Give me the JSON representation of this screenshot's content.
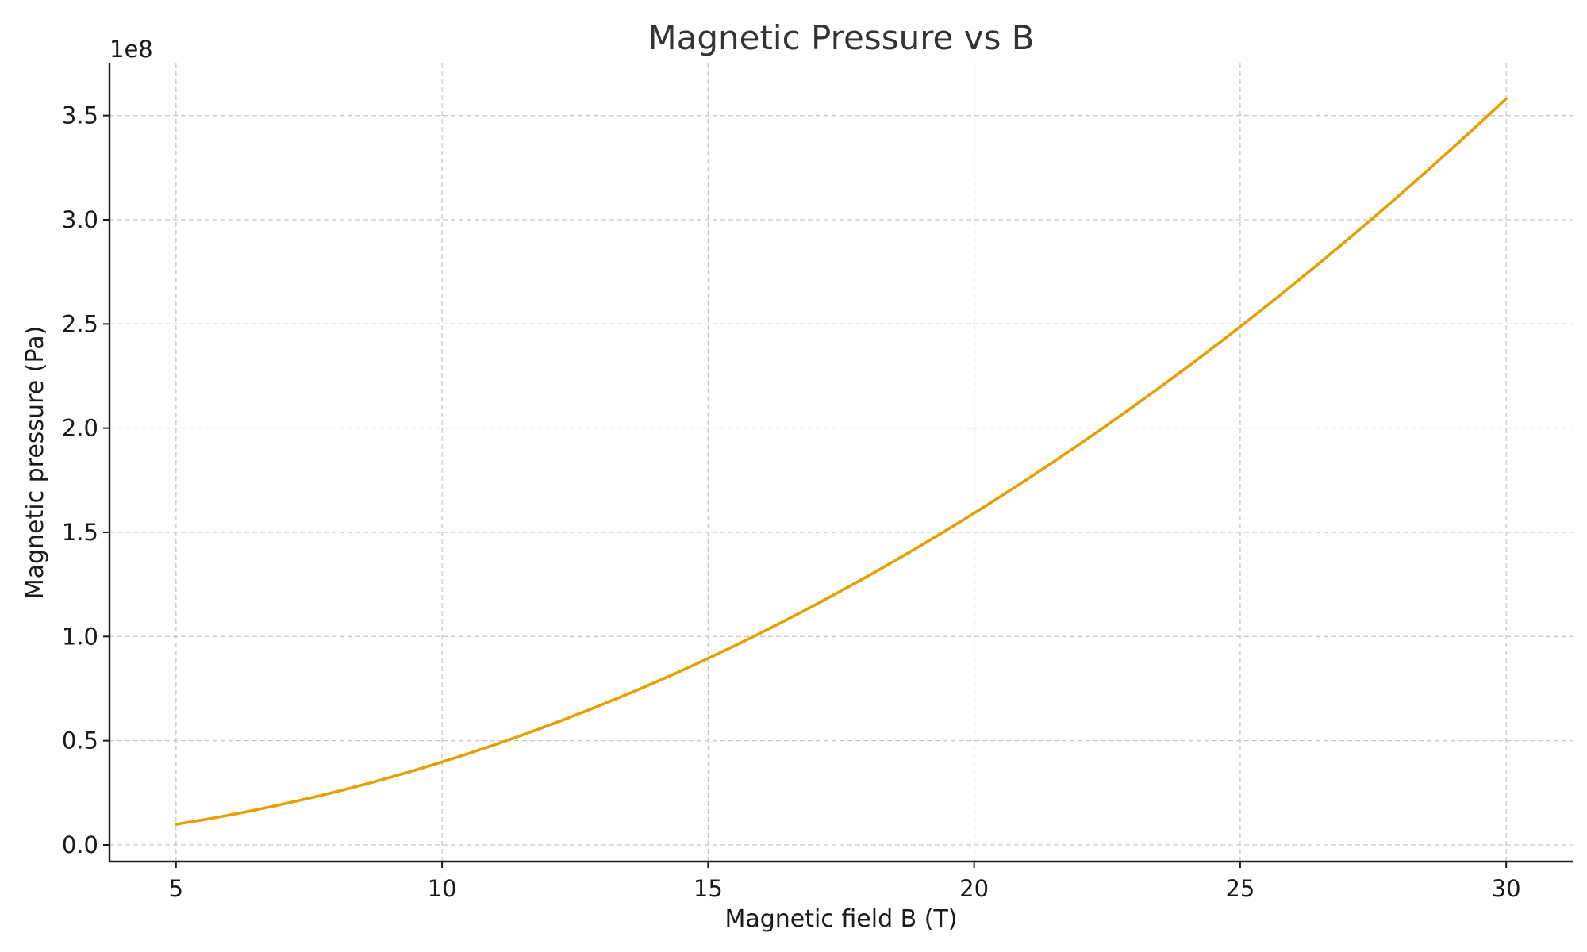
{
  "chart_data": {
    "type": "line",
    "title": "Magnetic Pressure vs B",
    "xlabel": "Magnetic field B (T)",
    "ylabel": "Magnetic pressure (Pa)",
    "y_offset_label": "1e8",
    "xlim": [
      3.75,
      31.25
    ],
    "ylim": [
      -0.08,
      3.75
    ],
    "xticks": [
      5,
      10,
      15,
      20,
      25,
      30
    ],
    "xtick_labels": [
      "5",
      "10",
      "15",
      "20",
      "25",
      "30"
    ],
    "yticks": [
      0.0,
      0.5,
      1.0,
      1.5,
      2.0,
      2.5,
      3.0,
      3.5
    ],
    "ytick_labels": [
      "0.0",
      "0.5",
      "1.0",
      "1.5",
      "2.0",
      "2.5",
      "3.0",
      "3.5"
    ],
    "grid": true,
    "series": [
      {
        "color": "#E69F00",
        "x": [
          5,
          7.5,
          10,
          12.5,
          15,
          17.5,
          20,
          22.5,
          25,
          27.5,
          30
        ],
        "y": [
          0.099,
          0.224,
          0.398,
          0.622,
          0.895,
          1.219,
          1.592,
          2.015,
          2.487,
          3.009,
          3.581
        ]
      }
    ]
  }
}
